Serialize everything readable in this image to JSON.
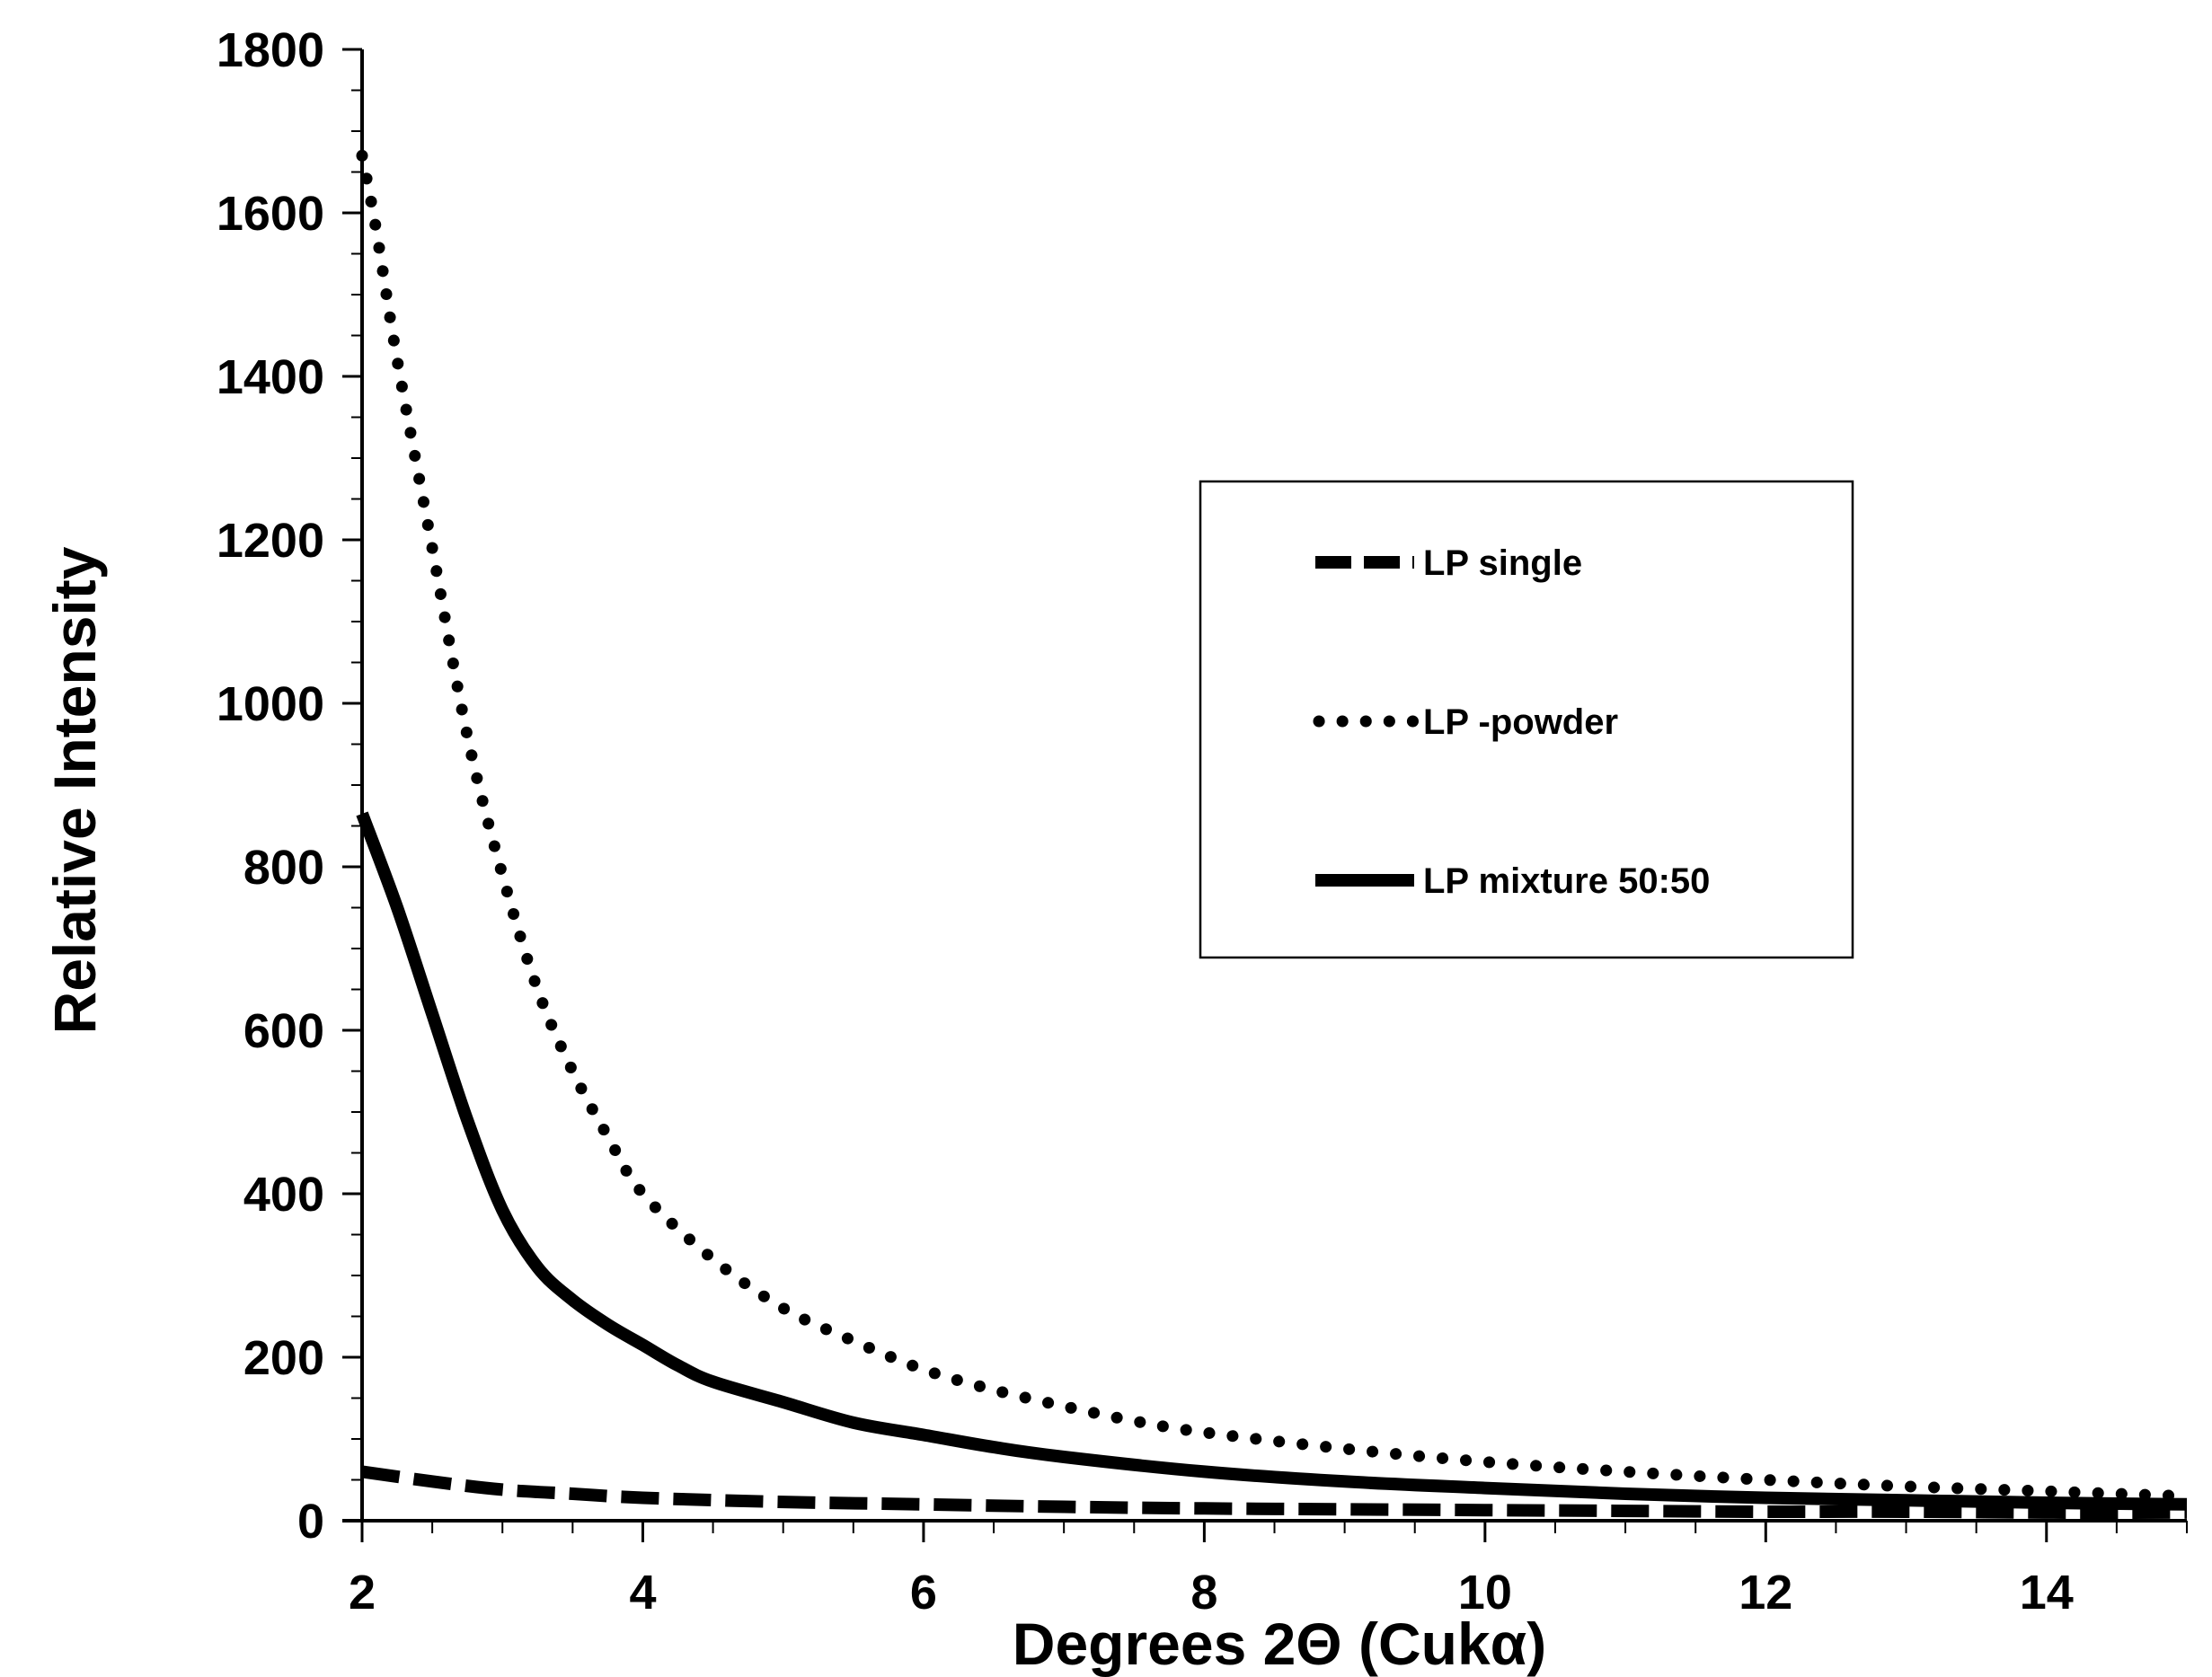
{
  "chart_data": {
    "type": "line",
    "title": "",
    "xlabel": "Degrees 2Θ (Cukα)",
    "ylabel": "Relative Intensity",
    "xlim": [
      2,
      15
    ],
    "ylim": [
      0,
      1800
    ],
    "x_ticks": [
      "2",
      "4",
      "6",
      "8",
      "10",
      "12",
      "14"
    ],
    "y_ticks": [
      "0",
      "200",
      "400",
      "600",
      "800",
      "1000",
      "1200",
      "1400",
      "1600",
      "1800"
    ],
    "grid": false,
    "legend_position": "right",
    "colors": {
      "line": "#000000",
      "background": "#ffffff"
    },
    "series": [
      {
        "name": "LP single",
        "style": "dashed",
        "x": [
          2,
          2.5,
          3,
          3.5,
          4,
          5,
          6,
          7,
          8,
          9,
          10,
          11,
          12,
          13,
          14,
          15
        ],
        "y": [
          60,
          48,
          38,
          33,
          28,
          23,
          20,
          17,
          15,
          14,
          13,
          12,
          11,
          11,
          10,
          10
        ]
      },
      {
        "name": "LP -powder",
        "style": "dotted",
        "x": [
          2,
          2.1,
          2.25,
          2.5,
          2.75,
          3,
          3.25,
          3.5,
          3.75,
          4,
          4.5,
          5,
          5.5,
          6,
          6.5,
          7,
          7.5,
          8,
          9,
          10,
          11,
          12,
          13,
          14,
          15
        ],
        "y": [
          1670,
          1580,
          1420,
          1190,
          960,
          790,
          650,
          550,
          470,
          400,
          320,
          260,
          220,
          185,
          160,
          140,
          122,
          108,
          88,
          72,
          60,
          50,
          42,
          36,
          30
        ]
      },
      {
        "name": "LP mixture 50:50",
        "style": "solid",
        "x": [
          2,
          2.25,
          2.5,
          2.75,
          3,
          3.25,
          3.5,
          3.75,
          4,
          4.25,
          4.5,
          5,
          5.5,
          6,
          6.5,
          7,
          8,
          9,
          10,
          11,
          12,
          13,
          14,
          15
        ],
        "y": [
          865,
          750,
          620,
          490,
          380,
          310,
          270,
          240,
          215,
          190,
          170,
          145,
          120,
          105,
          90,
          78,
          60,
          48,
          40,
          33,
          28,
          25,
          22,
          20
        ]
      }
    ]
  }
}
